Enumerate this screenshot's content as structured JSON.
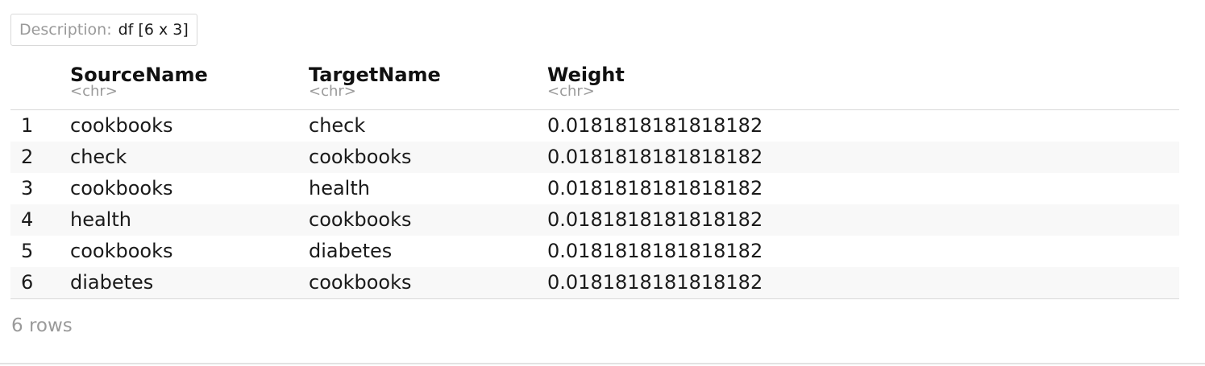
{
  "description": {
    "label": "Description:",
    "value": "df [6 x 3]"
  },
  "table": {
    "columns": [
      {
        "name": "SourceName",
        "type": "<chr>"
      },
      {
        "name": "TargetName",
        "type": "<chr>"
      },
      {
        "name": "Weight",
        "type": "<chr>"
      }
    ],
    "rows": [
      {
        "index": "1",
        "source": "cookbooks",
        "target": "check",
        "weight": "0.0181818181818182"
      },
      {
        "index": "2",
        "source": "check",
        "target": "cookbooks",
        "weight": "0.0181818181818182"
      },
      {
        "index": "3",
        "source": "cookbooks",
        "target": "health",
        "weight": "0.0181818181818182"
      },
      {
        "index": "4",
        "source": "health",
        "target": "cookbooks",
        "weight": "0.0181818181818182"
      },
      {
        "index": "5",
        "source": "cookbooks",
        "target": "diabetes",
        "weight": "0.0181818181818182"
      },
      {
        "index": "6",
        "source": "diabetes",
        "target": "cookbooks",
        "weight": "0.0181818181818182"
      }
    ]
  },
  "footer": {
    "row_count": "6 rows"
  }
}
